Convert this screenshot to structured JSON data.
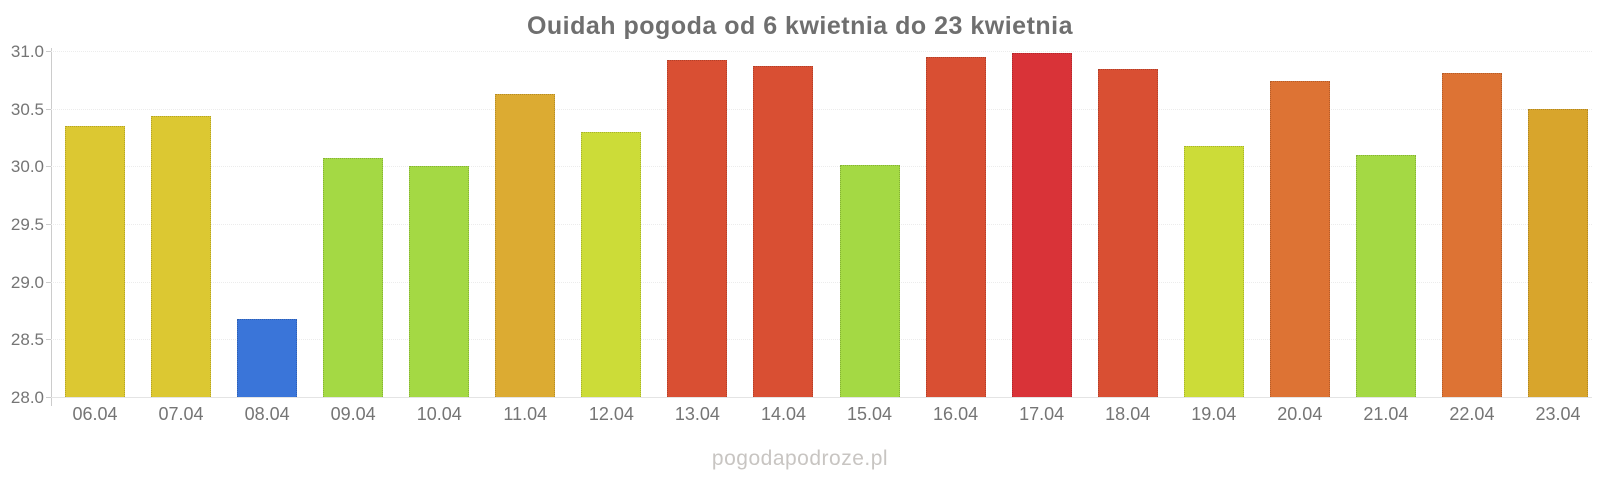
{
  "title": "Ouidah pogoda od 6 kwietnia do 23 kwietnia",
  "watermark": "pogodapodroze.pl",
  "chart_data": {
    "type": "bar",
    "title": "Ouidah pogoda od 6 kwietnia do 23 kwietnia",
    "xlabel": "",
    "ylabel": "",
    "ylim": [
      28.0,
      31.0
    ],
    "ytick_step": 0.5,
    "ytick_labels": [
      "31.0",
      "30.5",
      "30.0",
      "29.5",
      "29.0",
      "28.5",
      "28.0"
    ],
    "grid": true,
    "legend": false,
    "categories": [
      "06.04",
      "07.04",
      "08.04",
      "09.04",
      "10.04",
      "11.04",
      "12.04",
      "13.04",
      "14.04",
      "15.04",
      "16.04",
      "17.04",
      "18.04",
      "19.04",
      "20.04",
      "21.04",
      "22.04",
      "23.04"
    ],
    "values": [
      30.35,
      30.44,
      28.68,
      30.07,
      30.0,
      30.63,
      30.3,
      30.92,
      30.87,
      30.01,
      30.95,
      30.98,
      30.84,
      30.18,
      30.74,
      30.1,
      30.81,
      30.5
    ],
    "bar_colors": [
      "#dcc832",
      "#dcc832",
      "#3a75d9",
      "#a4d944",
      "#a4d944",
      "#dcab32",
      "#ccdc38",
      "#d94f33",
      "#d94f33",
      "#a4d944",
      "#d94f33",
      "#d93338",
      "#d94f33",
      "#ccdc38",
      "#dd7334",
      "#a4d944",
      "#dd7334",
      "#d8a52c"
    ]
  },
  "colors": {
    "title_text": "#6f6f6f",
    "axis_label_text": "#757575",
    "watermark_text": "#c8c5c2",
    "gridline": "#ececec",
    "axis_line": "#cccccc",
    "background": "#ffffff"
  }
}
